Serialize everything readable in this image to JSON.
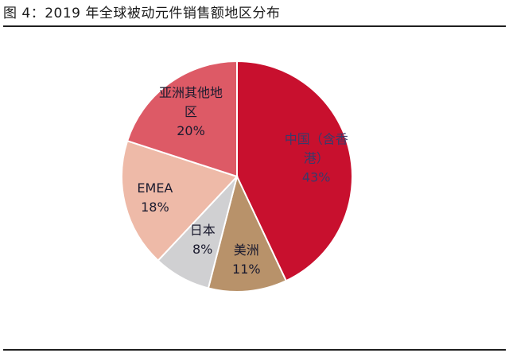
{
  "figure": {
    "title": "图 4：2019 年全球被动元件销售额地区分布"
  },
  "chart_data": {
    "type": "pie",
    "title": "",
    "start_direction": "12 o'clock, clockwise",
    "slices": [
      {
        "label": "中国（含香港）",
        "label_lines": [
          "中国（含香",
          "港）"
        ],
        "value": 43,
        "value_label": "43%",
        "color": "#c8102e",
        "text_color": "#3a3a6a"
      },
      {
        "label": "美洲",
        "label_lines": [
          "美洲"
        ],
        "value": 11,
        "value_label": "11%",
        "color": "#b8926a",
        "text_color": "#1a1a2e"
      },
      {
        "label": "日本",
        "label_lines": [
          "日本"
        ],
        "value": 8,
        "value_label": "8%",
        "color": "#d0d0d2",
        "text_color": "#1a1a2e"
      },
      {
        "label": "EMEA",
        "label_lines": [
          "EMEA"
        ],
        "value": 18,
        "value_label": "18%",
        "color": "#eebaa8",
        "text_color": "#1a1a2e"
      },
      {
        "label": "亚洲其他地区",
        "label_lines": [
          "亚洲其他地",
          "区"
        ],
        "value": 20,
        "value_label": "20%",
        "color": "#dd5a66",
        "text_color": "#1a1a2e"
      }
    ]
  }
}
